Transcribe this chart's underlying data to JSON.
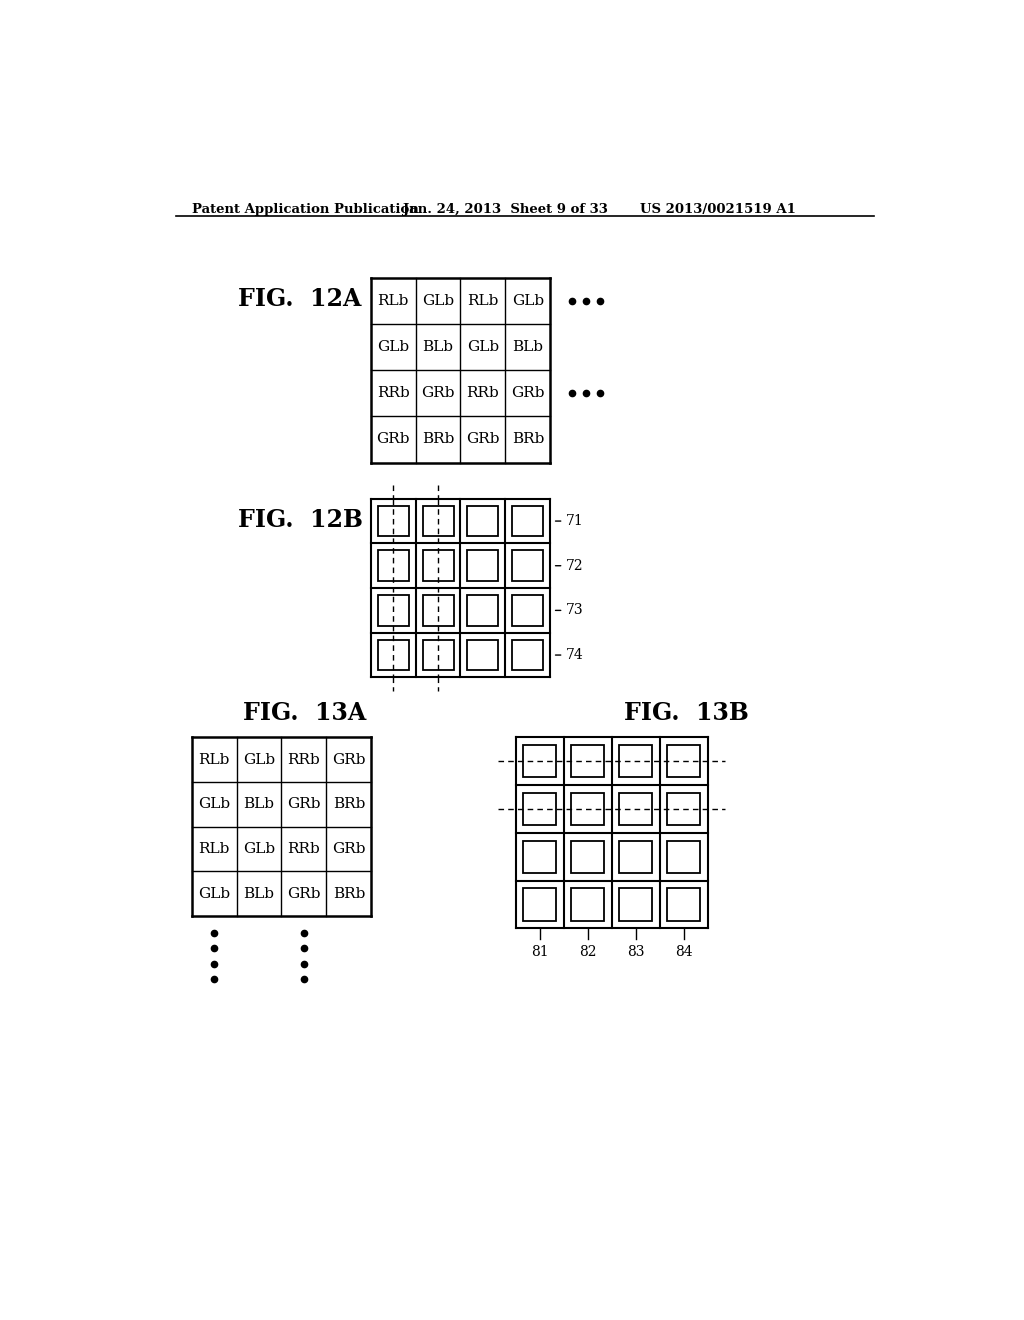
{
  "header_left": "Patent Application Publication",
  "header_mid": "Jan. 24, 2013  Sheet 9 of 33",
  "header_right": "US 2013/0021519 A1",
  "fig12a_label": "FIG.  12A",
  "fig12b_label": "FIG.  12B",
  "fig13a_label": "FIG.  13A",
  "fig13b_label": "FIG.  13B",
  "fig12a_grid": [
    [
      "RLb",
      "GLb",
      "RLb",
      "GLb"
    ],
    [
      "GLb",
      "BLb",
      "GLb",
      "BLb"
    ],
    [
      "RRb",
      "GRb",
      "RRb",
      "GRb"
    ],
    [
      "GRb",
      "BRb",
      "GRb",
      "BRb"
    ]
  ],
  "fig13a_grid": [
    [
      "RLb",
      "GLb",
      "RRb",
      "GRb"
    ],
    [
      "GLb",
      "BLb",
      "GRb",
      "BRb"
    ],
    [
      "RLb",
      "GLb",
      "RRb",
      "GRb"
    ],
    [
      "GLb",
      "BLb",
      "GRb",
      "BRb"
    ]
  ],
  "fig12b_row_labels": [
    "71",
    "72",
    "73",
    "74"
  ],
  "fig13b_col_labels": [
    "81",
    "82",
    "83",
    "84"
  ],
  "bg_color": "#ffffff",
  "line_color": "#000000"
}
